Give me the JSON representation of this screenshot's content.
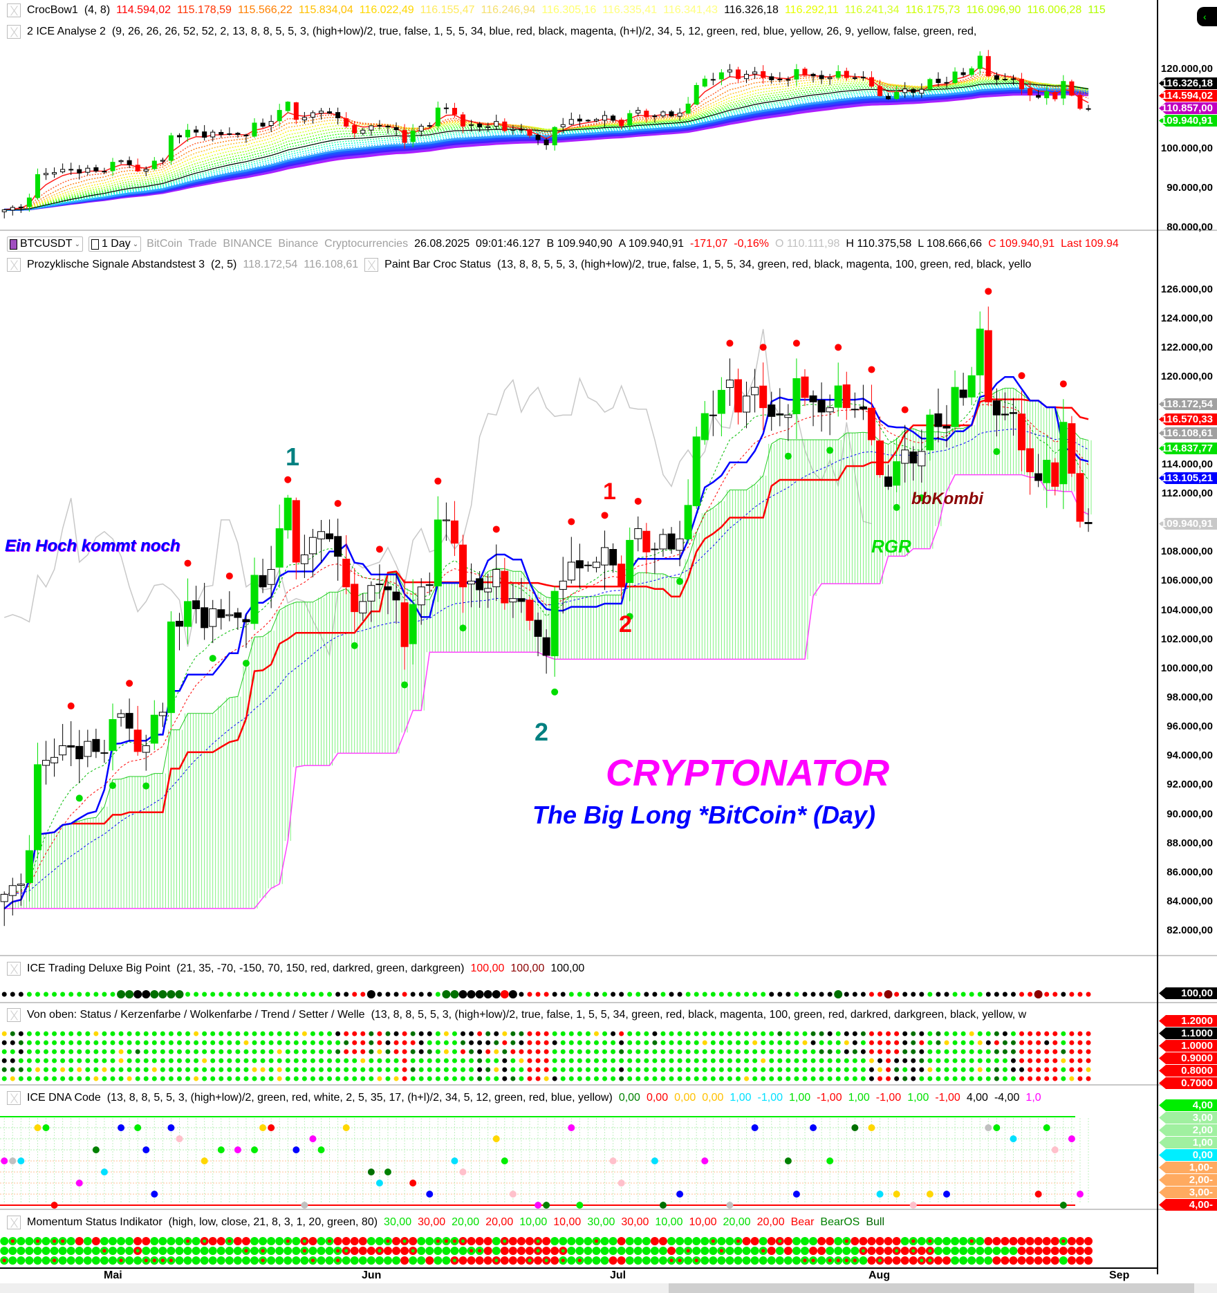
{
  "window": {
    "collapse_button": "‹"
  },
  "top_pane": {
    "crocbow": {
      "name": "CrocBow1",
      "params": "(4,  8)",
      "values": [
        {
          "v": "114.594,02",
          "c": "#ff0000"
        },
        {
          "v": "115.178,59",
          "c": "#ff3300"
        },
        {
          "v": "115.566,22",
          "c": "#ff7f00"
        },
        {
          "v": "115.834,04",
          "c": "#ffc000"
        },
        {
          "v": "116.022,49",
          "c": "#ffd700"
        },
        {
          "v": "116.155,47",
          "c": "#ffeb60"
        },
        {
          "v": "116.246,94",
          "c": "#f5e070"
        },
        {
          "v": "116.305,16",
          "c": "#ffff70"
        },
        {
          "v": "116.335,41",
          "c": "#ffff80"
        },
        {
          "v": "116.341,43",
          "c": "#ffff80"
        },
        {
          "v": "116.326,18",
          "c": "#000000"
        },
        {
          "v": "116.292,11",
          "c": "#e6ff00"
        },
        {
          "v": "116.241,34",
          "c": "#d4ff20"
        },
        {
          "v": "116.175,73",
          "c": "#ccff00"
        },
        {
          "v": "116.096,90",
          "c": "#c0ff00"
        },
        {
          "v": "116.006,28",
          "c": "#c0ff00"
        },
        {
          "v": "115",
          "c": "#b0ff00"
        }
      ]
    },
    "ice_analyse": {
      "name": "2 ICE Analyse 2",
      "params": "(9,  26,  26,  26,  52,  52,  2,  13,  8,  8,  5,  5,  3,  (high+low)/2,  true,  false,  1,  5,  5,  34,  blue,  red,  black,  magenta,  (h+l)/2,  34,  5,  12,  green,  red,  blue,  yellow,  26,  9,  yellow,  false,  green,  red,"
    },
    "axis_labels": [
      "120.000,00",
      "100.000,00",
      "90.000,00",
      "80.000,00"
    ],
    "tags": [
      {
        "v": "116.326,18",
        "c": "#000000"
      },
      {
        "v": "114.594,02",
        "c": "#ff0000"
      },
      {
        "v": "110.857,00",
        "c": "#c000c0"
      },
      {
        "v": "109.940,91",
        "c": "#00e000"
      }
    ]
  },
  "symbol_bar": {
    "symbol": "BTCUSDT",
    "symbol_color": "#a050c0",
    "timeframe": "1 Day",
    "description": "BitCoin  Trade  BINANCE  Binance  Cryptocurrencies",
    "datetime": "26.08.2025  09:01:46.127",
    "bid": "B 109.940,90",
    "ask": "A 109.940,91",
    "change": "-171,07",
    "change_pct": "-0,16%",
    "open": "O 110.111,98",
    "high": "H 110.375,58",
    "low": "L 108.666,66",
    "close": "C 109.940,91",
    "last": "Last 109.94"
  },
  "main_pane": {
    "prozyklisch": {
      "name": "Prozyklische Signale Abstandstest 3",
      "params": "(2,  5)",
      "v1": "118.172,54",
      "v2": "116.108,61"
    },
    "paint_bar": {
      "name": "Paint Bar Croc Status",
      "params": "(13,  8,  8,  5,  5,  3,  (high+low)/2,  true,  false,  1,  5,  5,  34,  green,  red,  black,  magenta,  100,  green,  red,  black,  yello"
    },
    "axis_labels": [
      "126.000,00",
      "124.000,00",
      "122.000,00",
      "120.000,00",
      "114.000,00",
      "112.000,00",
      "108.000,00",
      "106.000,00",
      "104.000,00",
      "102.000,00",
      "100.000,00",
      "98.000,00",
      "96.000,00",
      "94.000,00",
      "92.000,00",
      "90.000,00",
      "88.000,00",
      "86.000,00",
      "84.000,00",
      "82.000,00"
    ],
    "tags": [
      {
        "v": "118.172,54",
        "c": "#a0a0a0"
      },
      {
        "v": "116.570,33",
        "c": "#ff0000"
      },
      {
        "v": "116.108,61",
        "c": "#a0a0a0"
      },
      {
        "v": "114.837,77",
        "c": "#00e000"
      },
      {
        "v": "113.105,21",
        "c": "#0000ff"
      },
      {
        "v": "109.940,91",
        "c": "#c8c8c8"
      }
    ],
    "annotations": {
      "hoch": "Ein Hoch kommt noch",
      "teal1": "1",
      "teal2": "2",
      "red1": "1",
      "red2": "2",
      "title": "CRYPTONATOR",
      "subtitle": "The Big Long *BitCoin* (Day)",
      "bbkombi": "bbKombi",
      "rgr": "RGR"
    }
  },
  "big_point": {
    "name": "ICE Trading Deluxe Big Point",
    "params": "(21,  35,  -70,  -150,  70,  150,  red,  darkred,  green,  darkgreen)",
    "values": [
      {
        "v": "100,00",
        "c": "#ff0000"
      },
      {
        "v": "100,00",
        "c": "#8b0000"
      },
      {
        "v": "100,00",
        "c": "#000000"
      }
    ],
    "tag": "100,00"
  },
  "von_oben": {
    "name": "Von oben: Status / Kerzenfarbe / Wolkenfarbe / Trend / Setter / Welle",
    "params": "(13,  8,  8,  5,  5,  3,  (high+low)/2,  true,  false,  1,  5,  5,  34,  green,  red,  black,  magenta,  100,  green,  red,  darkred,  darkgreen,  black,  yellow,  w",
    "tags": [
      {
        "v": "1.2000",
        "c": "#ff0000"
      },
      {
        "v": "1.1000",
        "c": "#000000"
      },
      {
        "v": "1.0000",
        "c": "#ff0000"
      },
      {
        "v": "0.9000",
        "c": "#ff0000"
      },
      {
        "v": "0.8000",
        "c": "#ff0000"
      },
      {
        "v": "0.7000",
        "c": "#ff0000"
      }
    ]
  },
  "dna": {
    "name": "ICE DNA Code",
    "params": "(13,  8,  8,  5,  5,  3,  (high+low)/2,  green,  red,  white,  2,  5,  35,  17,  (h+l)/2,  34,  5,  12,  green,  red,  blue,  yellow)",
    "values": [
      {
        "v": "0,00",
        "c": "#008000"
      },
      {
        "v": "0,00",
        "c": "#ff0000"
      },
      {
        "v": "0,00",
        "c": "#ffc000"
      },
      {
        "v": "0,00",
        "c": "#ffc000"
      },
      {
        "v": "1,00",
        "c": "#00e0ff"
      },
      {
        "v": "-1,00",
        "c": "#00e0ff"
      },
      {
        "v": "1,00",
        "c": "#00e000"
      },
      {
        "v": "-1,00",
        "c": "#ff0000"
      },
      {
        "v": "1,00",
        "c": "#00e000"
      },
      {
        "v": "-1,00",
        "c": "#ff0000"
      },
      {
        "v": "1,00",
        "c": "#00e000"
      },
      {
        "v": "-1,00",
        "c": "#ff0000"
      },
      {
        "v": "4,00",
        "c": "#000000"
      },
      {
        "v": "-4,00",
        "c": "#000000"
      },
      {
        "v": "1,0",
        "c": "#ff00ff"
      }
    ],
    "tags": [
      {
        "v": "4,00",
        "c": "#00ee00"
      },
      {
        "v": "3,00",
        "c": "#a0f0a0"
      },
      {
        "v": "2,00",
        "c": "#a0f0a0"
      },
      {
        "v": "1,00",
        "c": "#a0f0a0"
      },
      {
        "v": "0,00",
        "c": "#00eeff"
      },
      {
        "v": "-1,00",
        "c": "#ffaa60"
      },
      {
        "v": "-2,00",
        "c": "#ffaa60"
      },
      {
        "v": "-3,00",
        "c": "#ffaa60"
      },
      {
        "v": "-4,00",
        "c": "#ff0000"
      }
    ]
  },
  "momentum": {
    "name": "Momentum Status Indikator",
    "params": "(high,  low,  close,  21,  8,  3,  1,  20,  green,  80)",
    "values": [
      {
        "v": "30,00",
        "c": "#00e000"
      },
      {
        "v": "30,00",
        "c": "#ff0000"
      },
      {
        "v": "20,00",
        "c": "#00e000"
      },
      {
        "v": "20,00",
        "c": "#ff0000"
      },
      {
        "v": "10,00",
        "c": "#00e000"
      },
      {
        "v": "10,00",
        "c": "#ff0000"
      },
      {
        "v": "30,00",
        "c": "#00e000"
      },
      {
        "v": "30,00",
        "c": "#ff0000"
      },
      {
        "v": "10,00",
        "c": "#00e000"
      },
      {
        "v": "10,00",
        "c": "#ff0000"
      },
      {
        "v": "20,00",
        "c": "#00e000"
      },
      {
        "v": "20,00",
        "c": "#ff0000"
      },
      {
        "v": "Bear",
        "c": "#ff0000"
      },
      {
        "v": "BearOS",
        "c": "#008000"
      },
      {
        "v": "Bull",
        "c": "#006400"
      }
    ]
  },
  "time_axis": [
    "Mai",
    "Jun",
    "Jul",
    "Aug",
    "Sep"
  ],
  "chart_data": {
    "type": "candlestick",
    "first_date": "18.04.2025",
    "last_date": "26.08.2025",
    "interval": "1 Day",
    "ylim_main": [
      81000,
      127000
    ],
    "closes": [
      84500,
      85100,
      85200,
      87500,
      93400,
      93700,
      93900,
      94700,
      94600,
      93800,
      95000,
      94300,
      94200,
      96500,
      96900,
      95900,
      94300,
      94700,
      96800,
      97000,
      103200,
      102900,
      104600,
      104100,
      102800,
      104100,
      103500,
      103700,
      103500,
      103200,
      106400,
      105600,
      106800,
      109600,
      111700,
      107300,
      107800,
      109000,
      109400,
      108900,
      107700,
      105600,
      103900,
      104600,
      105700,
      105800,
      105400,
      104700,
      101500,
      104400,
      105600,
      105700,
      110200,
      110200,
      108600,
      105600,
      106000,
      105400,
      105500,
      106800,
      104500,
      104800,
      104600,
      103300,
      102200,
      100900,
      105300,
      106000,
      107300,
      106900,
      107100,
      107300,
      108300,
      107100,
      105700,
      108800,
      109600,
      108000,
      108200,
      109200,
      108200,
      108900,
      111200,
      115900,
      117500,
      117400,
      119100,
      119800,
      117600,
      118700,
      119300,
      117900,
      117300,
      117400,
      117400,
      119900,
      118600,
      118300,
      117600,
      117900,
      119400,
      117900,
      117800,
      117800,
      115700,
      113300,
      112500,
      114200,
      115000,
      114100,
      114900,
      117400,
      116600,
      116500,
      119300,
      118600,
      120100,
      123300,
      118300,
      117400,
      117400,
      117500,
      115000,
      113500,
      112900,
      114300,
      112500,
      116900,
      113400,
      110100,
      109940.91
    ]
  }
}
